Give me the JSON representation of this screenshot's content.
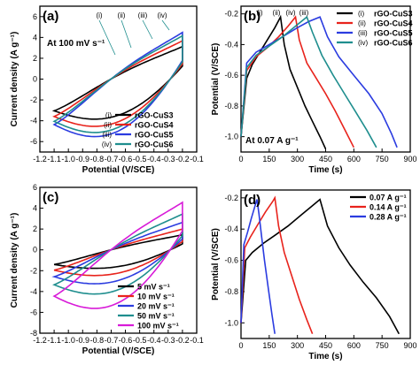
{
  "chart_data": [
    {
      "panel_label": "(a)",
      "type": "line",
      "xlabel": "Potential (V/SCE)",
      "ylabel": "Current density (A g⁻¹)",
      "xlim": [
        -1.2,
        -0.1
      ],
      "ylim": [
        -7,
        7
      ],
      "xticks": [
        "-1.2",
        "-1.1",
        "-1.0",
        "-0.9",
        "-0.8",
        "-0.7",
        "-0.6",
        "-0.5",
        "-0.4",
        "-0.3",
        "-0.2",
        "-0.1"
      ],
      "yticks": [
        "-6",
        "-4",
        "-2",
        "0",
        "2",
        "4",
        "6"
      ],
      "annotation": "At 100 mV s⁻¹",
      "legend_position": "bottom-right",
      "curve_tags": [
        "(i)",
        "(ii)",
        "(iii)",
        "(iv)"
      ],
      "series": [
        {
          "name": "rGO-CuS3",
          "tag": "(i)",
          "color": "#000000",
          "cv_amplitude": 3.9
        },
        {
          "name": "rGO-CuS4",
          "tag": "(ii)",
          "color": "#e8231c",
          "cv_amplitude": 4.6
        },
        {
          "name": "rGO-CuS5",
          "tag": "(iii)",
          "color": "#2b3ce0",
          "cv_amplitude": 5.6
        },
        {
          "name": "rGO-CuS6",
          "tag": "(iv)",
          "color": "#1f8e8e",
          "cv_amplitude": 5.2
        }
      ]
    },
    {
      "panel_label": "(b)",
      "type": "line",
      "xlabel": "Time (s)",
      "ylabel": "Potential (V/SCE)",
      "xlim": [
        0,
        900
      ],
      "ylim": [
        -1.1,
        -0.15
      ],
      "xticks": [
        "0",
        "150",
        "300",
        "450",
        "600",
        "750",
        "900"
      ],
      "yticks": [
        "-0.2",
        "-0.4",
        "-0.6",
        "-0.8",
        "-1.0"
      ],
      "annotation": "At 0.07 A g⁻¹",
      "legend_position": "top-right",
      "curve_tags": [
        "(i)",
        "(ii)",
        "(iv)",
        "(iii)"
      ],
      "series": [
        {
          "name": "rGO-CuS3",
          "tag": "(i)",
          "color": "#000000",
          "x": [
            0,
            30,
            60,
            100,
            140,
            180,
            210,
            230,
            260,
            300,
            340,
            380,
            420,
            450
          ],
          "y": [
            -1.0,
            -0.62,
            -0.53,
            -0.45,
            -0.37,
            -0.29,
            -0.22,
            -0.4,
            -0.56,
            -0.68,
            -0.8,
            -0.9,
            -1.0,
            -1.08
          ]
        },
        {
          "name": "rGO-CuS4",
          "tag": "(ii)",
          "color": "#e8231c",
          "x": [
            0,
            30,
            80,
            140,
            200,
            250,
            290,
            310,
            350,
            400,
            450,
            500,
            550,
            600
          ],
          "y": [
            -1.0,
            -0.57,
            -0.48,
            -0.42,
            -0.35,
            -0.28,
            -0.22,
            -0.37,
            -0.52,
            -0.62,
            -0.72,
            -0.83,
            -0.95,
            -1.07
          ]
        },
        {
          "name": "rGO-CuS5",
          "tag": "(iii)",
          "color": "#2b3ce0",
          "x": [
            0,
            30,
            80,
            150,
            220,
            300,
            360,
            420,
            460,
            520,
            600,
            680,
            750,
            800,
            830
          ],
          "y": [
            -1.0,
            -0.52,
            -0.45,
            -0.4,
            -0.35,
            -0.29,
            -0.25,
            -0.22,
            -0.35,
            -0.48,
            -0.6,
            -0.72,
            -0.85,
            -0.98,
            -1.07
          ]
        },
        {
          "name": "rGO-CuS6",
          "tag": "(iv)",
          "color": "#1f8e8e",
          "x": [
            0,
            30,
            80,
            150,
            220,
            290,
            350,
            380,
            430,
            490,
            550,
            610,
            670,
            720
          ],
          "y": [
            -1.0,
            -0.55,
            -0.47,
            -0.41,
            -0.35,
            -0.28,
            -0.22,
            -0.32,
            -0.47,
            -0.6,
            -0.72,
            -0.84,
            -0.96,
            -1.07
          ]
        }
      ]
    },
    {
      "panel_label": "(c)",
      "type": "line",
      "xlabel": "Potential (V/SCE)",
      "ylabel": "Current density (A g⁻¹)",
      "xlim": [
        -1.2,
        -0.1
      ],
      "ylim": [
        -8,
        6
      ],
      "xticks": [
        "-1.2",
        "-1.1",
        "-1.0",
        "-0.9",
        "-0.8",
        "-0.7",
        "-0.6",
        "-0.5",
        "-0.4",
        "-0.3",
        "-0.2",
        "-0.1"
      ],
      "yticks": [
        "-8",
        "-6",
        "-4",
        "-2",
        "0",
        "2",
        "4",
        "6"
      ],
      "legend_position": "bottom-right",
      "series": [
        {
          "name": "5 mV s⁻¹",
          "color": "#000000",
          "cv_amplitude": 1.8
        },
        {
          "name": "10 mV s⁻¹",
          "color": "#e8231c",
          "cv_amplitude": 2.5
        },
        {
          "name": "20 mV s⁻¹",
          "color": "#2b3ce0",
          "cv_amplitude": 3.3
        },
        {
          "name": "50 mV s⁻¹",
          "color": "#1f8e8e",
          "cv_amplitude": 4.3
        },
        {
          "name": "100 mV s⁻¹",
          "color": "#d81bd8",
          "cv_amplitude": 5.7
        }
      ]
    },
    {
      "panel_label": "(d)",
      "type": "line",
      "xlabel": "Time (s)",
      "ylabel": "Potential (V/SCE)",
      "xlim": [
        0,
        900
      ],
      "ylim": [
        -1.1,
        -0.15
      ],
      "xticks": [
        "0",
        "150",
        "300",
        "450",
        "600",
        "750",
        "900"
      ],
      "yticks": [
        "-0.2",
        "-0.4",
        "-0.6",
        "-0.8",
        "-1.0"
      ],
      "legend_position": "top-right",
      "series": [
        {
          "name": "0.07 A g⁻¹",
          "color": "#000000",
          "x": [
            0,
            25,
            60,
            120,
            180,
            250,
            320,
            380,
            420,
            460,
            520,
            580,
            650,
            720,
            790,
            840
          ],
          "y": [
            -1.0,
            -0.6,
            -0.55,
            -0.49,
            -0.44,
            -0.38,
            -0.31,
            -0.25,
            -0.21,
            -0.38,
            -0.52,
            -0.63,
            -0.74,
            -0.84,
            -0.96,
            -1.07
          ]
        },
        {
          "name": "0.14 A g⁻¹",
          "color": "#e8231c",
          "x": [
            0,
            20,
            50,
            90,
            130,
            170,
            180,
            200,
            230,
            270,
            310,
            350,
            380
          ],
          "y": [
            -1.0,
            -0.52,
            -0.45,
            -0.37,
            -0.29,
            -0.22,
            -0.2,
            -0.38,
            -0.55,
            -0.7,
            -0.85,
            -0.98,
            -1.07
          ]
        },
        {
          "name": "0.28 A g⁻¹",
          "color": "#2b3ce0",
          "x": [
            0,
            15,
            35,
            55,
            75,
            85,
            95,
            110,
            125,
            145,
            165,
            180
          ],
          "y": [
            -1.0,
            -0.5,
            -0.42,
            -0.33,
            -0.25,
            -0.21,
            -0.3,
            -0.45,
            -0.6,
            -0.78,
            -0.95,
            -1.07
          ]
        }
      ]
    }
  ]
}
